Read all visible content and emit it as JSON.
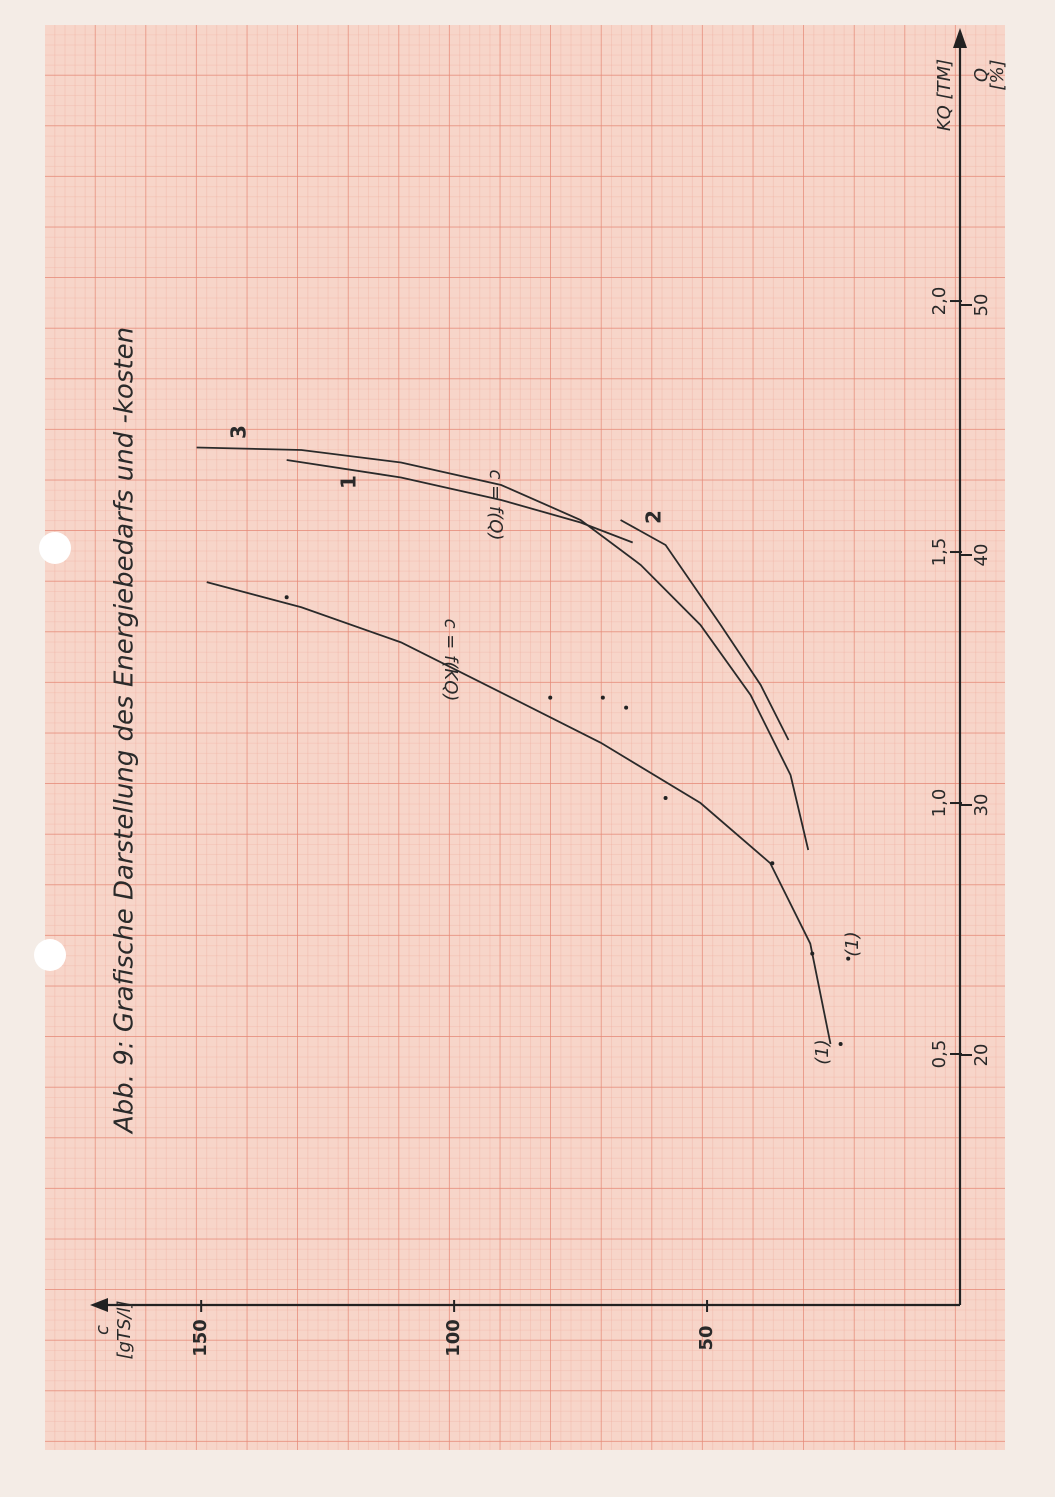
{
  "chart_data": {
    "type": "line",
    "title": "Abb. 9:  Grafische Darstellung des Energiebedarfs und -kosten",
    "x_label": "KQ [TM]",
    "x2_label": [
      "Q",
      "[%]"
    ],
    "y_label": [
      "c",
      "[gTS/l]"
    ],
    "xlim": [
      0,
      2.52
    ],
    "xticks": [
      {
        "value": 0.5,
        "label": "0,5"
      },
      {
        "value": 1.0,
        "label": "1,0"
      },
      {
        "value": 1.5,
        "label": "1,5"
      },
      {
        "value": 2.0,
        "label": "2,0"
      }
    ],
    "x2lim": [
      10,
      60.6
    ],
    "x2ticks": [
      20,
      30,
      40,
      50
    ],
    "ylim": [
      0,
      170
    ],
    "yticks": [
      50,
      100,
      150
    ],
    "series": [
      {
        "color": "#2a2a2a",
        "x": [
          1.44,
          1.39,
          1.32,
          1.22,
          1.12,
          1.0,
          0.88,
          0.72,
          0.52
        ],
        "values": [
          148.9,
          130.2,
          110.5,
          90.7,
          71.0,
          51.3,
          37.5,
          29.6,
          25.6
        ]
      },
      {
        "name": "3",
        "axis": "x2",
        "color": "#2a2a2a",
        "x": [
          44.3,
          44.2,
          43.7,
          42.8,
          41.4,
          39.6,
          37.2,
          34.4,
          31.2,
          28.2
        ],
        "values": [
          150.9,
          130.2,
          110.5,
          90.7,
          75.0,
          63.1,
          51.3,
          41.4,
          33.5,
          30.0
        ]
      },
      {
        "name": "1",
        "axis": "x2",
        "color": "#2a2a2a",
        "x": [
          43.8,
          43.1,
          42.2,
          41.3,
          40.5
        ],
        "values": [
          133.1,
          110.5,
          90.7,
          75.0,
          64.7
        ]
      },
      {
        "name": "2",
        "axis": "x2",
        "color": "#2a2a2a",
        "x": [
          41.4,
          40.4,
          37.2,
          34.8,
          32.6
        ],
        "values": [
          67.1,
          58.2,
          47.3,
          39.4,
          33.9
        ]
      }
    ],
    "points": {
      "x": [
        1.41,
        1.21,
        1.21,
        1.19,
        1.01,
        0.88,
        0.7,
        0.69,
        0.52
      ],
      "values": [
        133.1,
        81.0,
        70.6,
        66.0,
        58.2,
        37.1,
        29.2,
        22.1,
        23.6
      ]
    },
    "annotations": [
      "c = f(Q)",
      "c = f(KQ)",
      "(1)",
      "(1)"
    ]
  }
}
